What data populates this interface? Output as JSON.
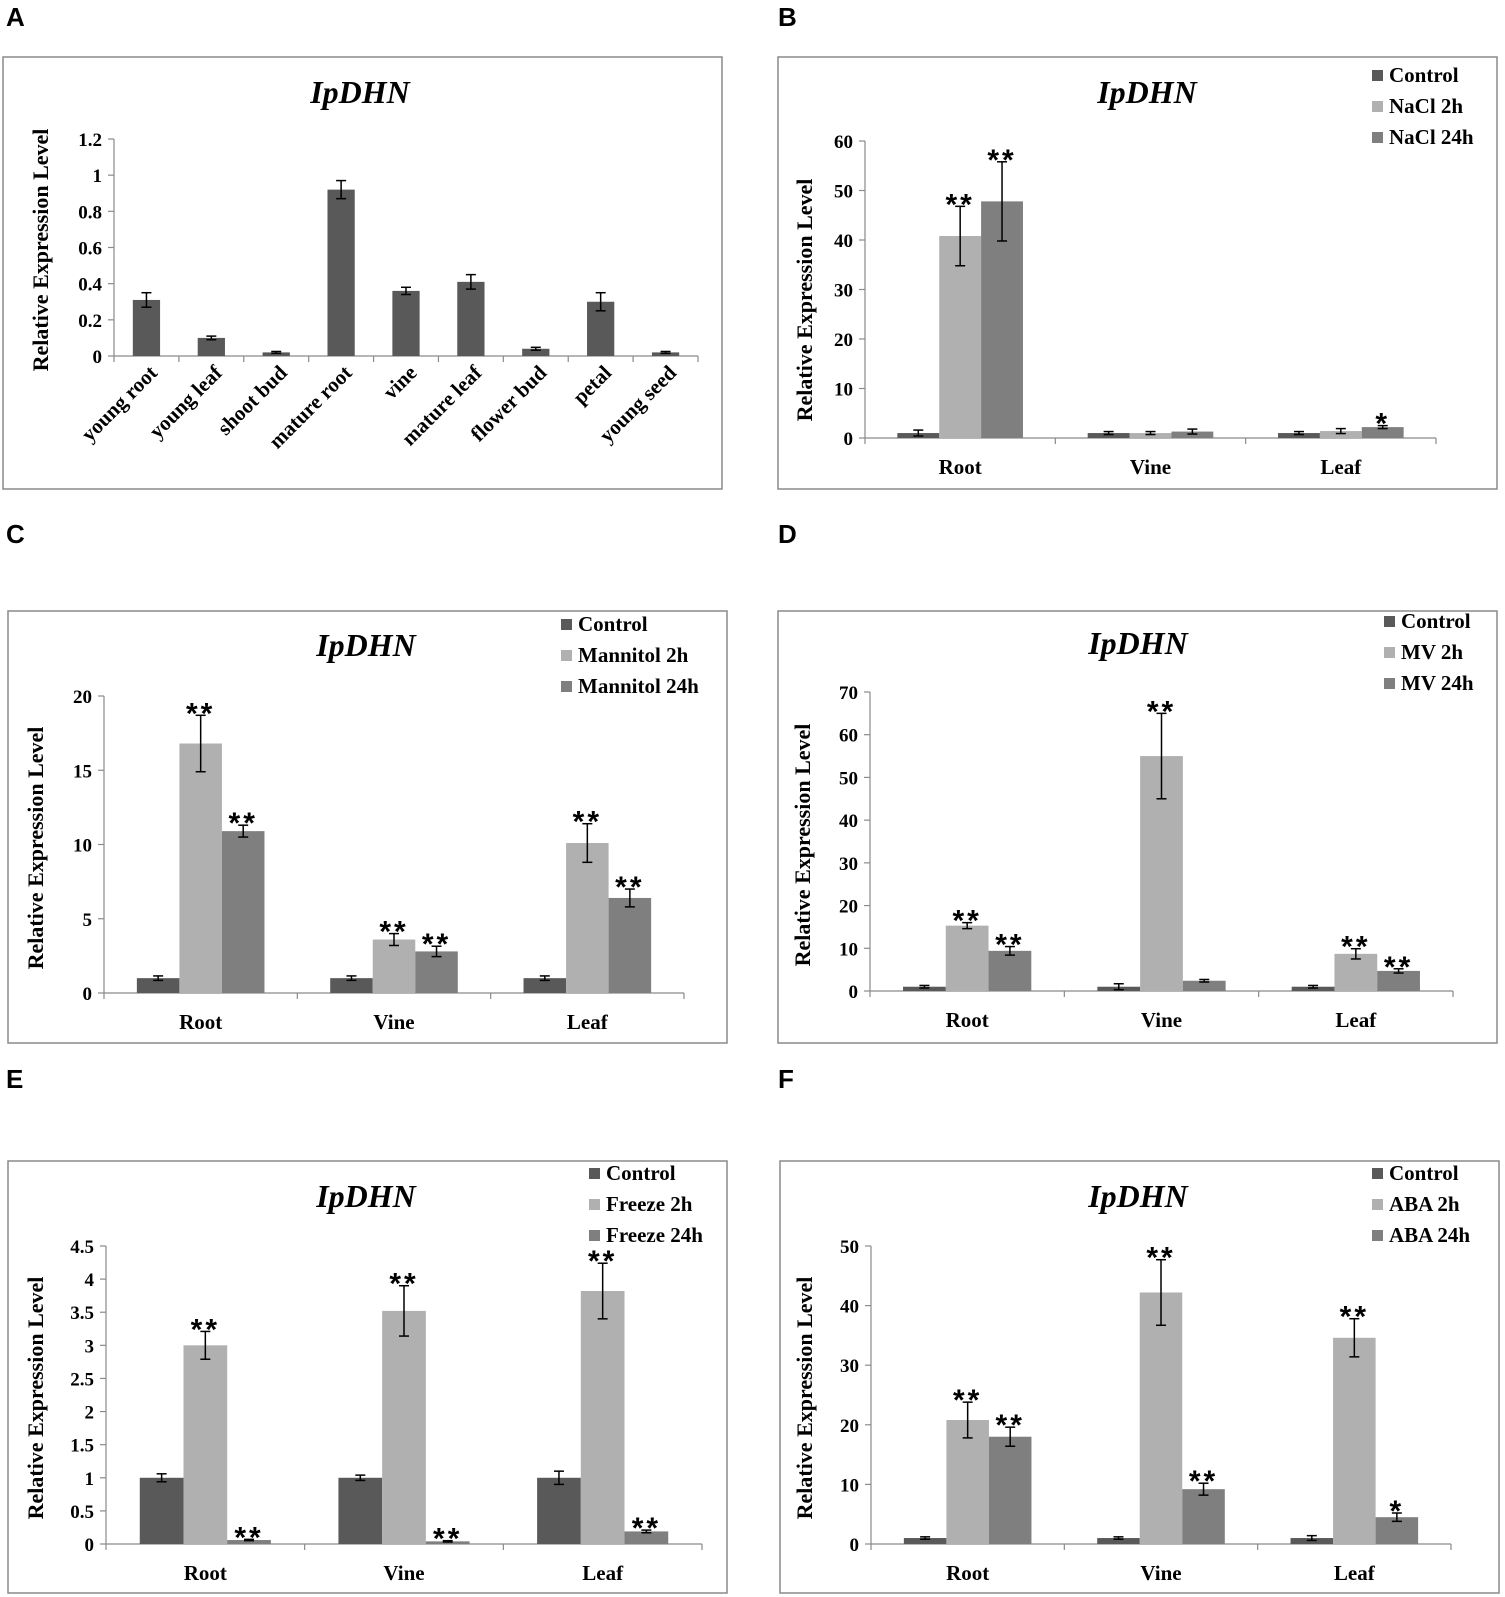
{
  "chart_data": [
    {
      "panel": "A",
      "type": "bar",
      "title": "IpDHN",
      "ylabel": "Relative Expression Level",
      "xlabel": "",
      "ylim": [
        0,
        1.2
      ],
      "yticks": [
        "0",
        "0.2",
        "0.4",
        "0.6",
        "0.8",
        "1",
        "1.2"
      ],
      "categories": [
        "young root",
        "young leaf",
        "shoot bud",
        "mature root",
        "vine",
        "mature leaf",
        "flower bud",
        "petal",
        "young seed"
      ],
      "series": [
        {
          "name": "",
          "values": [
            0.31,
            0.1,
            0.02,
            0.92,
            0.36,
            0.41,
            0.04,
            0.3,
            0.02
          ],
          "errors": [
            0.04,
            0.01,
            0.005,
            0.05,
            0.02,
            0.04,
            0.008,
            0.05,
            0.005
          ],
          "sig": [
            "",
            "",
            "",
            "",
            "",
            "",
            "",
            "",
            ""
          ]
        }
      ],
      "legend": []
    },
    {
      "panel": "B",
      "type": "bar",
      "title": "IpDHN",
      "ylabel": "Relative Expression Level",
      "xlabel": "",
      "ylim": [
        0,
        60
      ],
      "yticks": [
        "0",
        "10",
        "20",
        "30",
        "40",
        "50",
        "60"
      ],
      "categories": [
        "Root",
        "Vine",
        "Leaf"
      ],
      "series": [
        {
          "name": "Control",
          "values": [
            1.0,
            1.0,
            1.0
          ],
          "errors": [
            0.6,
            0.3,
            0.3
          ],
          "sig": [
            "",
            "",
            ""
          ]
        },
        {
          "name": "NaCl 2h",
          "values": [
            40.8,
            1.0,
            1.4
          ],
          "errors": [
            6.0,
            0.3,
            0.5
          ],
          "sig": [
            "**",
            "",
            ""
          ]
        },
        {
          "name": "NaCl 24h",
          "values": [
            47.8,
            1.3,
            2.2
          ],
          "errors": [
            8.0,
            0.5,
            0.3
          ],
          "sig": [
            "**",
            "",
            "*"
          ]
        }
      ],
      "legend": [
        "Control",
        "NaCl 2h",
        "NaCl 24h"
      ]
    },
    {
      "panel": "C",
      "type": "bar",
      "title": "IpDHN",
      "ylabel": "Relative Expression Level",
      "xlabel": "",
      "ylim": [
        0,
        20
      ],
      "yticks": [
        "0",
        "5",
        "10",
        "15",
        "20"
      ],
      "categories": [
        "Root",
        "Vine",
        "Leaf"
      ],
      "series": [
        {
          "name": "Control",
          "values": [
            1.0,
            1.0,
            1.0
          ],
          "errors": [
            0.15,
            0.15,
            0.15
          ],
          "sig": [
            "",
            "",
            ""
          ]
        },
        {
          "name": "Mannitol 2h",
          "values": [
            16.8,
            3.6,
            10.1
          ],
          "errors": [
            1.9,
            0.4,
            1.3
          ],
          "sig": [
            "**",
            "**",
            "**"
          ]
        },
        {
          "name": "Mannitol 24h",
          "values": [
            10.9,
            2.8,
            6.4
          ],
          "errors": [
            0.4,
            0.35,
            0.6
          ],
          "sig": [
            "**",
            "**",
            "**"
          ]
        }
      ],
      "legend": [
        "Control",
        "Mannitol 2h",
        "Mannitol 24h"
      ]
    },
    {
      "panel": "D",
      "type": "bar",
      "title": "IpDHN",
      "ylabel": "Relative Expression Level",
      "xlabel": "",
      "ylim": [
        0,
        70
      ],
      "yticks": [
        "0",
        "10",
        "20",
        "30",
        "40",
        "50",
        "60",
        "70"
      ],
      "categories": [
        "Root",
        "Vine",
        "Leaf"
      ],
      "series": [
        {
          "name": "Control",
          "values": [
            1.0,
            1.0,
            1.0
          ],
          "errors": [
            0.3,
            0.7,
            0.3
          ],
          "sig": [
            "",
            "",
            ""
          ]
        },
        {
          "name": "MV 2h",
          "values": [
            15.3,
            55.0,
            8.7
          ],
          "errors": [
            0.7,
            10.0,
            1.2
          ],
          "sig": [
            "**",
            "**",
            "**"
          ]
        },
        {
          "name": "MV 24h",
          "values": [
            9.4,
            2.4,
            4.7
          ],
          "errors": [
            1.0,
            0.3,
            0.5
          ],
          "sig": [
            "**",
            "",
            "**"
          ]
        }
      ],
      "legend": [
        "Control",
        "MV 2h",
        "MV 24h"
      ]
    },
    {
      "panel": "E",
      "type": "bar",
      "title": "IpDHN",
      "ylabel": "Relative Expression Level",
      "xlabel": "",
      "ylim": [
        0,
        4.5
      ],
      "yticks": [
        "0",
        "0.5",
        "1",
        "1.5",
        "2",
        "2.5",
        "3",
        "3.5",
        "4",
        "4.5"
      ],
      "categories": [
        "Root",
        "Vine",
        "Leaf"
      ],
      "series": [
        {
          "name": "Control",
          "values": [
            1.0,
            1.0,
            1.0
          ],
          "errors": [
            0.06,
            0.04,
            0.1
          ],
          "sig": [
            "",
            "",
            ""
          ]
        },
        {
          "name": "Freeze 2h",
          "values": [
            3.0,
            3.52,
            3.82
          ],
          "errors": [
            0.21,
            0.38,
            0.42
          ],
          "sig": [
            "**",
            "**",
            "**"
          ]
        },
        {
          "name": "Freeze 24h",
          "values": [
            0.06,
            0.04,
            0.19
          ],
          "errors": [
            0.01,
            0.01,
            0.02
          ],
          "sig": [
            "**",
            "**",
            "**"
          ]
        }
      ],
      "legend": [
        "Control",
        "Freeze 2h",
        "Freeze 24h"
      ]
    },
    {
      "panel": "F",
      "type": "bar",
      "title": "IpDHN",
      "ylabel": "Relative Expression Level",
      "xlabel": "",
      "ylim": [
        0,
        50
      ],
      "yticks": [
        "0",
        "10",
        "20",
        "30",
        "40",
        "50"
      ],
      "categories": [
        "Root",
        "Vine",
        "Leaf"
      ],
      "series": [
        {
          "name": "Control",
          "values": [
            1.0,
            1.0,
            1.0
          ],
          "errors": [
            0.2,
            0.2,
            0.4
          ],
          "sig": [
            "",
            "",
            ""
          ]
        },
        {
          "name": "ABA 2h",
          "values": [
            20.8,
            42.2,
            34.6
          ],
          "errors": [
            3.0,
            5.5,
            3.2
          ],
          "sig": [
            "**",
            "**",
            "**"
          ]
        },
        {
          "name": "ABA 24h",
          "values": [
            18.0,
            9.2,
            4.5
          ],
          "errors": [
            1.6,
            1.0,
            0.7
          ],
          "sig": [
            "**",
            "**",
            "*"
          ]
        }
      ],
      "legend": [
        "Control",
        "ABA 2h",
        "ABA 24h"
      ]
    }
  ],
  "colors": {
    "control": "#595959",
    "treatment_2h": "#b0b0b0",
    "treatment_24h": "#7f7f7f",
    "single": "#595959",
    "frame": "#8a8a8a",
    "text": "#000000"
  }
}
